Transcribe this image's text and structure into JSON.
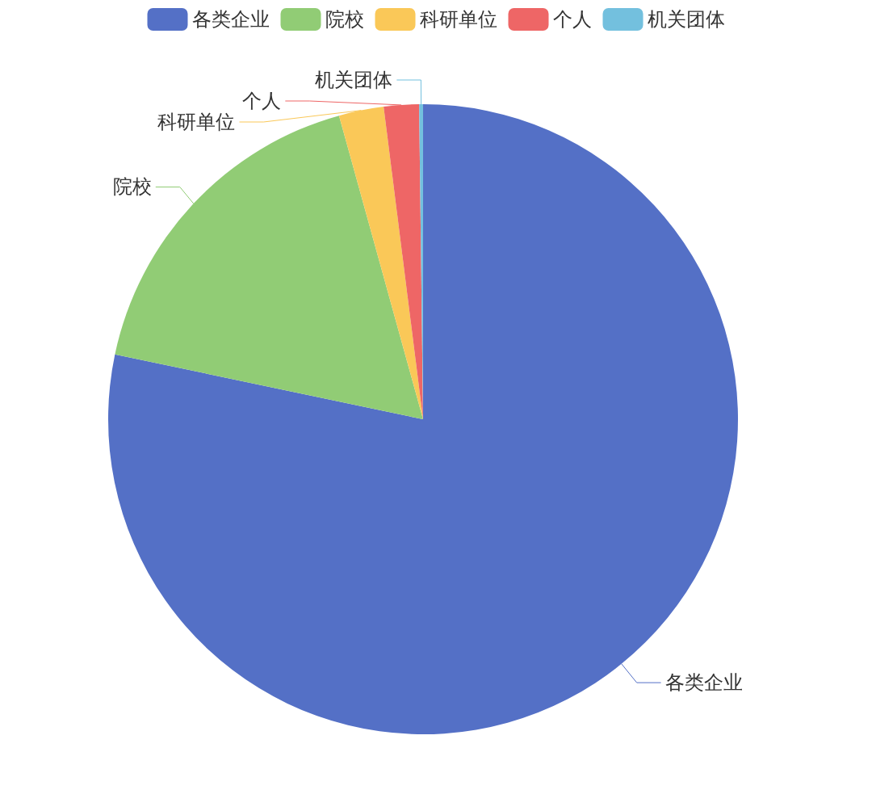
{
  "chart_data": {
    "type": "pie",
    "categories": [
      "各类企业",
      "院校",
      "科研单位",
      "个人",
      "机关团体"
    ],
    "values": [
      78.3,
      17.4,
      2.3,
      1.8,
      0.2
    ],
    "colors": [
      "#5470c6",
      "#91cc75",
      "#fac858",
      "#ee6666",
      "#73c0de"
    ],
    "legend": "top"
  }
}
